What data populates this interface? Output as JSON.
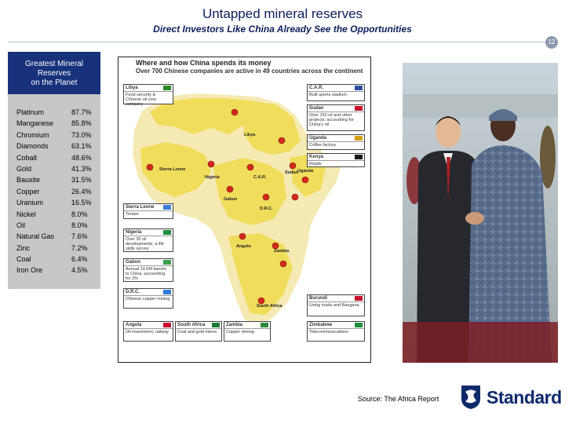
{
  "header": {
    "title": "Untapped mineral reserves",
    "subtitle": "Direct Investors Like China Already See the Opportunities",
    "page_number": "12"
  },
  "sidebar": {
    "heading_lines": [
      "Greatest Mineral",
      "Reserves",
      "on the Planet"
    ],
    "minerals": [
      {
        "name": "Platinum",
        "value": "87.7%"
      },
      {
        "name": "Manganese",
        "value": "85.8%"
      },
      {
        "name": "Chromium",
        "value": "73.0%"
      },
      {
        "name": "Diamonds",
        "value": "63.1%"
      },
      {
        "name": "Cobalt",
        "value": "48.6%"
      },
      {
        "name": "Gold",
        "value": "41.3%"
      },
      {
        "name": "Bauxite",
        "value": "31.5%"
      },
      {
        "name": "Copper",
        "value": "26.4%"
      },
      {
        "name": "Uranium",
        "value": "16.5%"
      },
      {
        "name": "Nickel",
        "value": "8.0%"
      },
      {
        "name": "Oil",
        "value": "8.0%"
      },
      {
        "name": "Natural Gas",
        "value": "7.6%"
      },
      {
        "name": "Zinc",
        "value": "7.2%"
      },
      {
        "name": "Coal",
        "value": "6.4%"
      },
      {
        "name": "Iron Ore",
        "value": "4.5%"
      }
    ]
  },
  "map": {
    "heading1": "Where and how China spends its money",
    "heading2": "Over 700 Chinese companies are active in 49 countries across the continent",
    "countries": {
      "libya": "Libya",
      "sudan": "Sudan",
      "nigeria": "Nigeria",
      "gabon": "Gabon",
      "angola": "Angola",
      "zambia": "Zambia",
      "south_africa": "South Africa",
      "kenya": "Kenya",
      "uganda": "Uganda",
      "sierra_leone": "Sierra Leone",
      "car": "C.A.R.",
      "drc": "D.R.C.",
      "burundi": "Burundi",
      "zimbabwe": "Zimbabwe"
    },
    "callouts": {
      "libya": {
        "title": "Libya",
        "body": "Food security & Chinese oil core company"
      },
      "car": {
        "title": "C.A.R.",
        "body": "Built sports stadium"
      },
      "sudan": {
        "title": "Sudan",
        "body": "Over 150 oil and other projects; accounting for China's oil"
      },
      "uganda": {
        "title": "Uganda",
        "body": "Coffee factory"
      },
      "kenya": {
        "title": "Kenya",
        "body": "Roads"
      },
      "sierra_leone": {
        "title": "Sierra Leone",
        "body": "Timber"
      },
      "nigeria": {
        "title": "Nigeria",
        "body": "Over 30 oil developments; a life skills survey"
      },
      "gabon": {
        "title": "Gabon",
        "body": "Annual 14.5M barrels to China, accounting for 2%"
      },
      "drc": {
        "title": "D.R.C.",
        "body": "Chinese copper mining"
      },
      "angola": {
        "title": "Angola",
        "body": "Oil investment, railway"
      },
      "south_africa": {
        "title": "South Africa",
        "body": "Coal and gold mines"
      },
      "zambia": {
        "title": "Zambia",
        "body": "Copper mining"
      },
      "burundi": {
        "title": "Burundi",
        "body": "Using roads and Bangana"
      },
      "zimbabwe": {
        "title": "Zimbabwe",
        "body": "Telecommunications"
      }
    },
    "flag_colors": {
      "libya": "#2a8a2a",
      "car": "#2b4fa8",
      "sudan": "#c8102e",
      "uganda": "#d4a017",
      "kenya": "#1b1b1b",
      "sierra_leone": "#3a7ed8",
      "nigeria": "#1f8f3a",
      "gabon": "#3aa04a",
      "drc": "#2f7dd6",
      "angola": "#c8102e",
      "south_africa": "#1f7a3a",
      "zambia": "#2e8b3e",
      "burundi": "#c8102e",
      "zimbabwe": "#1f8f3a"
    },
    "map_colors": {
      "highlight": "#f0dd5c",
      "land": "#f5e9b4",
      "sea": "#ffffff",
      "marker": "#d42a1e"
    }
  },
  "source": "Source: The Africa Report",
  "logo": {
    "text": "Standard",
    "icon": "standard-bank-shield-icon",
    "color": "#0d2a6b"
  }
}
